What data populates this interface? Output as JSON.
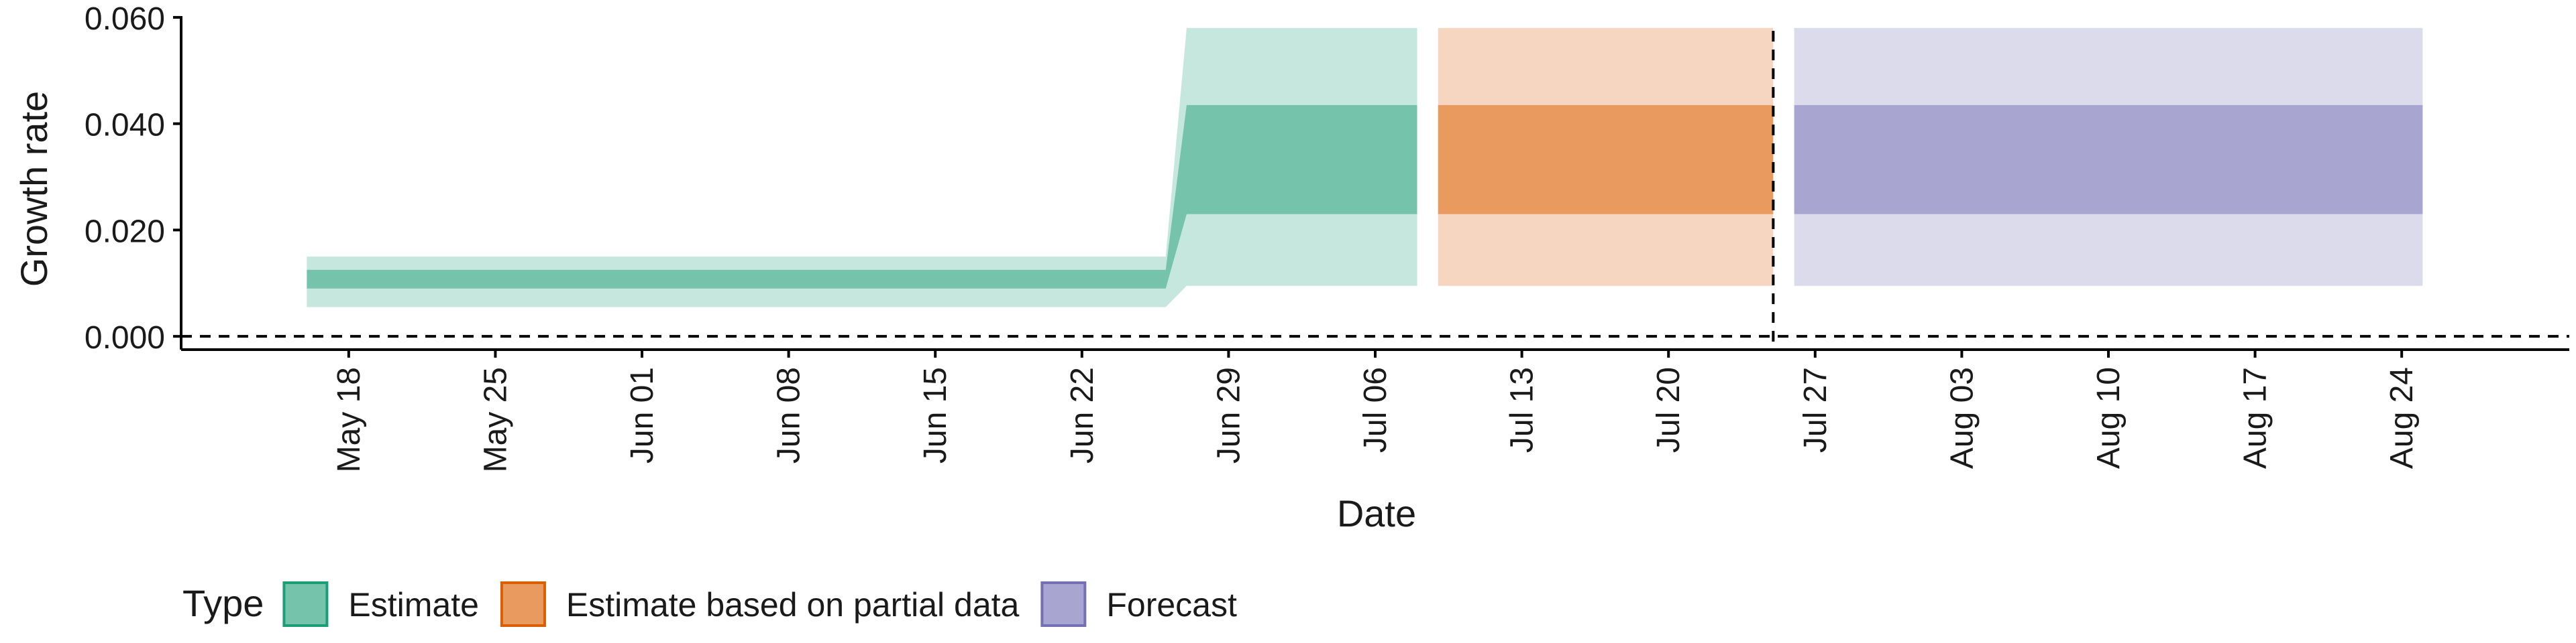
{
  "chart_data": {
    "type": "area",
    "xlabel": "Date",
    "ylabel": "Growth rate",
    "x_range": [
      "2020-05-10",
      "2020-09-01"
    ],
    "ylim": [
      -0.0025,
      0.0615
    ],
    "y_ticks": [
      {
        "value": 0.0,
        "label": "0.000"
      },
      {
        "value": 0.02,
        "label": "0.020"
      },
      {
        "value": 0.04,
        "label": "0.040"
      },
      {
        "value": 0.06,
        "label": "0.060"
      }
    ],
    "x_ticks": [
      {
        "date": "2020-05-18",
        "label": "May 18"
      },
      {
        "date": "2020-05-25",
        "label": "May 25"
      },
      {
        "date": "2020-06-01",
        "label": "Jun 01"
      },
      {
        "date": "2020-06-08",
        "label": "Jun 08"
      },
      {
        "date": "2020-06-15",
        "label": "Jun 15"
      },
      {
        "date": "2020-06-22",
        "label": "Jun 22"
      },
      {
        "date": "2020-06-29",
        "label": "Jun 29"
      },
      {
        "date": "2020-07-06",
        "label": "Jul 06"
      },
      {
        "date": "2020-07-13",
        "label": "Jul 13"
      },
      {
        "date": "2020-07-20",
        "label": "Jul 20"
      },
      {
        "date": "2020-07-27",
        "label": "Jul 27"
      },
      {
        "date": "2020-08-03",
        "label": "Aug 03"
      },
      {
        "date": "2020-08-10",
        "label": "Aug 10"
      },
      {
        "date": "2020-08-17",
        "label": "Aug 17"
      },
      {
        "date": "2020-08-24",
        "label": "Aug 24"
      }
    ],
    "hline": 0.0,
    "vline": "2020-07-25",
    "grid": false,
    "legend": {
      "title": "Type",
      "position": "bottom",
      "items": [
        {
          "name": "Estimate",
          "fill": "#74c3aa",
          "stroke": "#1b9e77"
        },
        {
          "name": "Estimate based on partial data",
          "fill": "#e89a5f",
          "stroke": "#d95f02"
        },
        {
          "name": "Forecast",
          "fill": "#a8a5d0",
          "stroke": "#7570b3"
        }
      ]
    },
    "series": [
      {
        "name": "Estimate",
        "inner_color": "#74c3aa",
        "outer_color": "#c6e7dd",
        "points": [
          {
            "x": "2020-05-16",
            "lower_90": 0.0055,
            "lower_50": 0.009,
            "upper_50": 0.0125,
            "upper_90": 0.015
          },
          {
            "x": "2020-06-26",
            "lower_90": 0.0055,
            "lower_50": 0.009,
            "upper_50": 0.0125,
            "upper_90": 0.015
          },
          {
            "x": "2020-06-27",
            "lower_90": 0.0095,
            "lower_50": 0.023,
            "upper_50": 0.0435,
            "upper_90": 0.058
          },
          {
            "x": "2020-07-08",
            "lower_90": 0.0095,
            "lower_50": 0.023,
            "upper_50": 0.0435,
            "upper_90": 0.058
          }
        ]
      },
      {
        "name": "Estimate based on partial data",
        "inner_color": "#e89a5f",
        "outer_color": "#f6d6c0",
        "points": [
          {
            "x": "2020-07-09",
            "lower_90": 0.0095,
            "lower_50": 0.023,
            "upper_50": 0.0435,
            "upper_90": 0.058
          },
          {
            "x": "2020-07-25",
            "lower_90": 0.0095,
            "lower_50": 0.023,
            "upper_50": 0.0435,
            "upper_90": 0.058
          }
        ]
      },
      {
        "name": "Forecast",
        "inner_color": "#a8a5d0",
        "outer_color": "#dcdbec",
        "points": [
          {
            "x": "2020-07-26",
            "lower_90": 0.0095,
            "lower_50": 0.023,
            "upper_50": 0.0435,
            "upper_90": 0.058
          },
          {
            "x": "2020-08-25",
            "lower_90": 0.0095,
            "lower_50": 0.023,
            "upper_50": 0.0435,
            "upper_90": 0.058
          }
        ]
      }
    ]
  }
}
